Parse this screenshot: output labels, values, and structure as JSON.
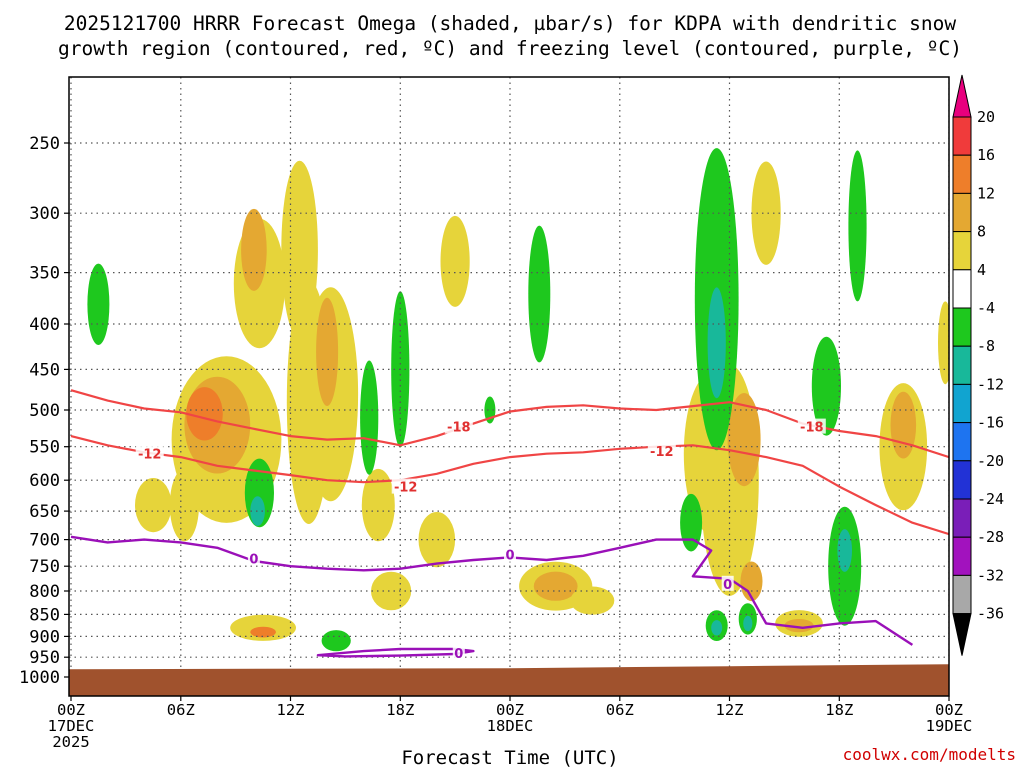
{
  "chart_data": {
    "type": "heatmap",
    "title_line1": "2025121700 HRRR Forecast Omega (shaded, µbar/s) for KDPA with dendritic snow",
    "title_line2": "growth region (contoured, red, ºC) and freezing level (contoured, purple, ºC)",
    "xlabel": "Forecast Time (UTC)",
    "ylabel": "Pressure (hPa)",
    "credit": "coolwx.com/modelts",
    "x_range_hours": [
      0,
      48
    ],
    "x_ticks": [
      {
        "h": 0,
        "lines": [
          "00Z",
          "17DEC",
          "2025"
        ]
      },
      {
        "h": 6,
        "lines": [
          "06Z"
        ]
      },
      {
        "h": 12,
        "lines": [
          "12Z"
        ]
      },
      {
        "h": 18,
        "lines": [
          "18Z"
        ]
      },
      {
        "h": 24,
        "lines": [
          "00Z",
          "18DEC"
        ]
      },
      {
        "h": 30,
        "lines": [
          "06Z"
        ]
      },
      {
        "h": 36,
        "lines": [
          "12Z"
        ]
      },
      {
        "h": 42,
        "lines": [
          "18Z"
        ]
      },
      {
        "h": 48,
        "lines": [
          "00Z",
          "19DEC"
        ]
      }
    ],
    "y_ticks": [
      250,
      300,
      350,
      400,
      450,
      500,
      550,
      600,
      650,
      700,
      750,
      800,
      850,
      900,
      950,
      1000
    ],
    "y_range_hpa": [
      200,
      1020
    ],
    "grid": true,
    "colorbar": {
      "levels": [
        20,
        16,
        12,
        8,
        4,
        -4,
        -8,
        -12,
        -16,
        -20,
        -24,
        -28,
        -32,
        -36
      ],
      "bins": [
        {
          "color": "#e8007e"
        },
        {
          "color": "#f03b3b"
        },
        {
          "color": "#ee7e2a"
        },
        {
          "color": "#e4a832"
        },
        {
          "color": "#e6d43a"
        },
        {
          "color": "#ffffff"
        },
        {
          "color": "#1ec81e"
        },
        {
          "color": "#18b89a"
        },
        {
          "color": "#11a4d0"
        },
        {
          "color": "#1e74f0"
        },
        {
          "color": "#2232d6"
        },
        {
          "color": "#7a1eb8"
        },
        {
          "color": "#a212be"
        },
        {
          "color": "#a8a8a8"
        },
        {
          "color": "#000000"
        }
      ]
    },
    "colors": {
      "dgz": "#f04545",
      "freezing": "#9a10b8",
      "ground": "#a0522d",
      "dgz_label": "#e03030"
    },
    "dgz_line_minus18": [
      [
        0,
        475
      ],
      [
        2,
        488
      ],
      [
        4,
        498
      ],
      [
        6,
        503
      ],
      [
        8,
        515
      ],
      [
        10,
        525
      ],
      [
        12,
        535
      ],
      [
        14,
        540
      ],
      [
        16,
        538
      ],
      [
        18,
        548
      ],
      [
        20,
        535
      ],
      [
        22,
        518
      ],
      [
        24,
        502
      ],
      [
        26,
        496
      ],
      [
        28,
        494
      ],
      [
        30,
        498
      ],
      [
        32,
        500
      ],
      [
        34,
        495
      ],
      [
        36,
        490
      ],
      [
        38,
        500
      ],
      [
        40,
        518
      ],
      [
        42,
        528
      ],
      [
        44,
        535
      ],
      [
        46,
        548
      ],
      [
        48,
        565
      ]
    ],
    "dgz_line_minus12": [
      [
        0,
        535
      ],
      [
        2,
        548
      ],
      [
        4,
        558
      ],
      [
        6,
        565
      ],
      [
        8,
        578
      ],
      [
        10,
        585
      ],
      [
        12,
        592
      ],
      [
        14,
        600
      ],
      [
        16,
        603
      ],
      [
        18,
        600
      ],
      [
        20,
        590
      ],
      [
        22,
        575
      ],
      [
        24,
        565
      ],
      [
        26,
        560
      ],
      [
        28,
        558
      ],
      [
        30,
        553
      ],
      [
        32,
        550
      ],
      [
        34,
        548
      ],
      [
        36,
        555
      ],
      [
        38,
        565
      ],
      [
        40,
        578
      ],
      [
        42,
        610
      ],
      [
        44,
        640
      ],
      [
        46,
        670
      ],
      [
        48,
        690
      ]
    ],
    "freezing_line_0": [
      [
        0,
        695
      ],
      [
        2,
        705
      ],
      [
        4,
        700
      ],
      [
        6,
        705
      ],
      [
        8,
        715
      ],
      [
        10,
        740
      ],
      [
        12,
        750
      ],
      [
        14,
        755
      ],
      [
        16,
        758
      ],
      [
        18,
        755
      ],
      [
        20,
        745
      ],
      [
        22,
        738
      ],
      [
        24,
        733
      ],
      [
        26,
        738
      ],
      [
        28,
        730
      ],
      [
        30,
        715
      ],
      [
        32,
        700
      ],
      [
        34,
        700
      ],
      [
        35,
        720
      ],
      [
        34,
        770
      ],
      [
        36,
        775
      ],
      [
        37,
        800
      ],
      [
        38,
        870
      ],
      [
        40,
        880
      ],
      [
        42,
        870
      ],
      [
        44,
        865
      ],
      [
        46,
        920
      ]
    ],
    "freezing_low_0": [
      [
        13.5,
        945
      ],
      [
        16,
        935
      ],
      [
        18,
        930
      ],
      [
        21,
        930
      ],
      [
        22,
        935
      ],
      [
        21,
        942
      ],
      [
        18,
        946
      ],
      [
        15,
        948
      ]
    ],
    "contour_labels": [
      {
        "text": "-12",
        "h": 4.3,
        "p": 560,
        "kind": "dgz"
      },
      {
        "text": "-18",
        "h": 21.2,
        "p": 522,
        "kind": "dgz"
      },
      {
        "text": "-12",
        "h": 18.3,
        "p": 610,
        "kind": "dgz"
      },
      {
        "text": "-12",
        "h": 32.3,
        "p": 556,
        "kind": "dgz"
      },
      {
        "text": "-18",
        "h": 40.5,
        "p": 522,
        "kind": "dgz"
      },
      {
        "text": "0",
        "h": 10.0,
        "p": 735,
        "kind": "freezing"
      },
      {
        "text": "0",
        "h": 24.0,
        "p": 728,
        "kind": "freezing"
      },
      {
        "text": "0",
        "h": 35.9,
        "p": 785,
        "kind": "freezing"
      },
      {
        "text": "0",
        "h": 21.2,
        "p": 940,
        "kind": "freezing"
      }
    ],
    "shaded_cells": [
      {
        "h": 8.5,
        "p": 540,
        "rh": 3.0,
        "rp": 230,
        "v": 5
      },
      {
        "h": 8.0,
        "p": 520,
        "rh": 1.8,
        "rp": 130,
        "v": 9
      },
      {
        "h": 7.3,
        "p": 505,
        "rh": 1.0,
        "rp": 70,
        "v": 13
      },
      {
        "h": 10.3,
        "p": 360,
        "rh": 1.4,
        "rp": 120,
        "v": 5
      },
      {
        "h": 10.0,
        "p": 330,
        "rh": 0.7,
        "rp": 70,
        "v": 9
      },
      {
        "h": 12.5,
        "p": 330,
        "rh": 1.0,
        "rp": 150,
        "v": 5
      },
      {
        "h": 13.0,
        "p": 490,
        "rh": 1.2,
        "rp": 300,
        "v": 5
      },
      {
        "h": 14.2,
        "p": 480,
        "rh": 1.5,
        "rp": 260,
        "v": 5
      },
      {
        "h": 14.0,
        "p": 430,
        "rh": 0.6,
        "rp": 120,
        "v": 9
      },
      {
        "h": 4.5,
        "p": 640,
        "rh": 1.0,
        "rp": 90,
        "v": 5
      },
      {
        "h": 6.2,
        "p": 640,
        "rh": 0.8,
        "rp": 120,
        "v": 5
      },
      {
        "h": 10.5,
        "p": 880,
        "rh": 1.8,
        "rp": 60,
        "v": 5
      },
      {
        "h": 10.5,
        "p": 890,
        "rh": 0.7,
        "rp": 25,
        "v": 13
      },
      {
        "h": 16.8,
        "p": 640,
        "rh": 0.9,
        "rp": 120,
        "v": 5
      },
      {
        "h": 17.5,
        "p": 800,
        "rh": 1.1,
        "rp": 80,
        "v": 5
      },
      {
        "h": 20.0,
        "p": 700,
        "rh": 1.0,
        "rp": 100,
        "v": 5
      },
      {
        "h": 21.0,
        "p": 340,
        "rh": 0.8,
        "rp": 80,
        "v": 5
      },
      {
        "h": 26.5,
        "p": 790,
        "rh": 2.0,
        "rp": 100,
        "v": 5
      },
      {
        "h": 26.5,
        "p": 790,
        "rh": 1.2,
        "rp": 60,
        "v": 9
      },
      {
        "h": 28.5,
        "p": 820,
        "rh": 1.2,
        "rp": 60,
        "v": 5
      },
      {
        "h": 35.0,
        "p": 560,
        "rh": 1.5,
        "rp": 230,
        "v": 5
      },
      {
        "h": 36.0,
        "p": 600,
        "rh": 1.6,
        "rp": 350,
        "v": 5
      },
      {
        "h": 36.8,
        "p": 540,
        "rh": 0.9,
        "rp": 130,
        "v": 9
      },
      {
        "h": 37.2,
        "p": 780,
        "rh": 0.6,
        "rp": 80,
        "v": 9
      },
      {
        "h": 39.8,
        "p": 870,
        "rh": 1.3,
        "rp": 60,
        "v": 5
      },
      {
        "h": 39.8,
        "p": 875,
        "rh": 0.8,
        "rp": 30,
        "v": 9
      },
      {
        "h": 38.0,
        "p": 300,
        "rh": 0.8,
        "rp": 80,
        "v": 5
      },
      {
        "h": 45.5,
        "p": 550,
        "rh": 1.3,
        "rp": 180,
        "v": 5
      },
      {
        "h": 45.5,
        "p": 520,
        "rh": 0.7,
        "rp": 90,
        "v": 9
      },
      {
        "h": 47.8,
        "p": 420,
        "rh": 0.4,
        "rp": 90,
        "v": 5
      },
      {
        "h": 1.5,
        "p": 380,
        "rh": 0.6,
        "rp": 80,
        "v": -6
      },
      {
        "h": 10.3,
        "p": 620,
        "rh": 0.8,
        "rp": 110,
        "v": -6
      },
      {
        "h": 10.2,
        "p": 650,
        "rh": 0.4,
        "rp": 50,
        "v": -11
      },
      {
        "h": 14.5,
        "p": 910,
        "rh": 0.8,
        "rp": 50,
        "v": -6
      },
      {
        "h": 16.3,
        "p": 510,
        "rh": 0.5,
        "rp": 150,
        "v": -6
      },
      {
        "h": 18.0,
        "p": 450,
        "rh": 0.5,
        "rp": 180,
        "v": -6
      },
      {
        "h": 22.9,
        "p": 500,
        "rh": 0.3,
        "rp": 35,
        "v": -6
      },
      {
        "h": 25.6,
        "p": 370,
        "rh": 0.6,
        "rp": 130,
        "v": -6
      },
      {
        "h": 33.9,
        "p": 670,
        "rh": 0.6,
        "rp": 100,
        "v": -6
      },
      {
        "h": 35.3,
        "p": 375,
        "rh": 1.2,
        "rp": 280,
        "v": -6
      },
      {
        "h": 35.3,
        "p": 420,
        "rh": 0.5,
        "rp": 120,
        "v": -11
      },
      {
        "h": 35.3,
        "p": 875,
        "rh": 0.6,
        "rp": 70,
        "v": -6
      },
      {
        "h": 35.3,
        "p": 880,
        "rh": 0.3,
        "rp": 35,
        "v": -11
      },
      {
        "h": 37.0,
        "p": 860,
        "rh": 0.5,
        "rp": 70,
        "v": -6
      },
      {
        "h": 37.0,
        "p": 870,
        "rh": 0.25,
        "rp": 35,
        "v": -11
      },
      {
        "h": 41.3,
        "p": 470,
        "rh": 0.8,
        "rp": 120,
        "v": -6
      },
      {
        "h": 43.0,
        "p": 310,
        "rh": 0.5,
        "rp": 120,
        "v": -6
      },
      {
        "h": 42.3,
        "p": 750,
        "rh": 0.9,
        "rp": 230,
        "v": -6
      },
      {
        "h": 42.3,
        "p": 720,
        "rh": 0.4,
        "rp": 80,
        "v": -11
      }
    ]
  }
}
